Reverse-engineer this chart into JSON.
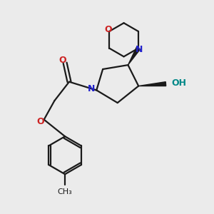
{
  "bg_color": "#ebebeb",
  "bond_color": "#1a1a1a",
  "N_color": "#2222cc",
  "O_color": "#cc2222",
  "OH_color": "#008888",
  "figsize": [
    3.0,
    3.0
  ],
  "dpi": 100,
  "xlim": [
    0,
    10
  ],
  "ylim": [
    0,
    10
  ]
}
